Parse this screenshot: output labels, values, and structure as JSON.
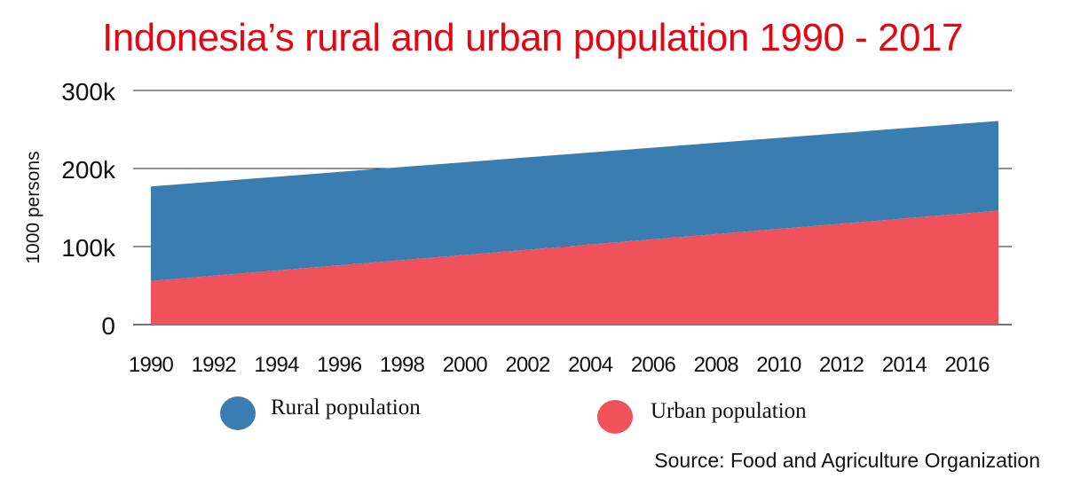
{
  "chart_data": {
    "type": "area",
    "title": "Indonesia’s rural and urban population 1990 - 2017",
    "ylabel": "1000 persons",
    "xlabel": "",
    "x": [
      1990,
      2017
    ],
    "xlim": [
      1990,
      2017
    ],
    "xticks": [
      "1990",
      "1992",
      "1994",
      "1996",
      "1998",
      "2000",
      "2002",
      "2004",
      "2006",
      "2008",
      "2010",
      "2012",
      "2014",
      "2016"
    ],
    "ylim": [
      0,
      300000
    ],
    "yticks": [
      0,
      100000,
      200000,
      300000
    ],
    "ytick_labels": [
      "0",
      "100k",
      "200k",
      "300k"
    ],
    "stacked": true,
    "grid": "horizontal",
    "series": [
      {
        "name": "Urban population",
        "values": [
          56000,
          146000
        ],
        "color": "#ef525b"
      },
      {
        "name": "Rural population",
        "values": [
          121000,
          115000
        ],
        "color": "#3a7db1"
      }
    ],
    "legend": [
      {
        "label": "Rural population",
        "color": "#3a7db1"
      },
      {
        "label": "Urban population",
        "color": "#ef525b"
      }
    ],
    "legend_placement": "bottom",
    "source": "Source: Food and Agriculture Organization"
  }
}
